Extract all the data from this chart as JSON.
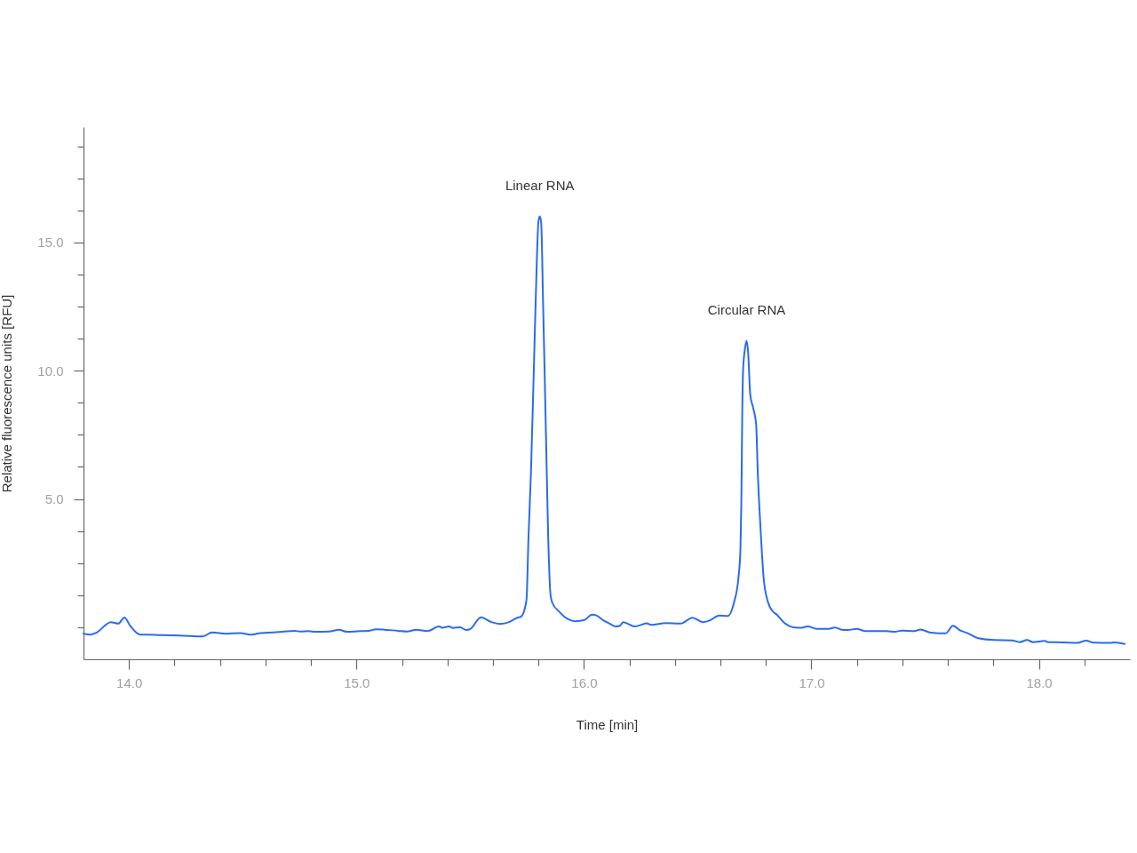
{
  "chart_data": {
    "type": "line",
    "color": "#2a6bef",
    "line_style": "solid",
    "grid": false,
    "xlabel": "Time [min]",
    "ylabel": "Relative fluorescence units [RFU]",
    "xlim": [
      13.8,
      18.4
    ],
    "ylim": [
      -1.25,
      19.5
    ],
    "xticks": [
      {
        "value": 14,
        "label": "14.0"
      },
      {
        "value": 14.2,
        "label": null
      },
      {
        "value": 14.4,
        "label": null
      },
      {
        "value": 14.6,
        "label": null
      },
      {
        "value": 14.8,
        "label": null
      },
      {
        "value": 15,
        "label": "15.0"
      },
      {
        "value": 15.2,
        "label": null
      },
      {
        "value": 15.4,
        "label": null
      },
      {
        "value": 15.6,
        "label": null
      },
      {
        "value": 15.8,
        "label": null
      },
      {
        "value": 16,
        "label": "16.0"
      },
      {
        "value": 16.2,
        "label": null
      },
      {
        "value": 16.4,
        "label": null
      },
      {
        "value": 16.6,
        "label": null
      },
      {
        "value": 16.8,
        "label": null
      },
      {
        "value": 17,
        "label": "17.0"
      },
      {
        "value": 17.2,
        "label": null
      },
      {
        "value": 17.4,
        "label": null
      },
      {
        "value": 17.6,
        "label": null
      },
      {
        "value": 17.8,
        "label": null
      },
      {
        "value": 18,
        "label": "18.0"
      },
      {
        "value": 18.2,
        "label": null
      }
    ],
    "yticks": [
      {
        "value": 0,
        "label": null
      },
      {
        "value": 1.25,
        "label": null
      },
      {
        "value": 2.5,
        "label": null
      },
      {
        "value": 3.75,
        "label": null
      },
      {
        "value": 5,
        "label": "5.0"
      },
      {
        "value": 6.25,
        "label": null
      },
      {
        "value": 7.5,
        "label": null
      },
      {
        "value": 8.75,
        "label": null
      },
      {
        "value": 10,
        "label": "10.0"
      },
      {
        "value": 11.25,
        "label": null
      },
      {
        "value": 12.5,
        "label": null
      },
      {
        "value": 13.75,
        "label": null
      },
      {
        "value": 15,
        "label": "15.0"
      },
      {
        "value": 16.25,
        "label": null
      },
      {
        "value": 17.5,
        "label": null
      },
      {
        "value": 18.75,
        "label": null
      }
    ],
    "annotations": [
      {
        "text": "Linear RNA",
        "x": 15.806,
        "y": 16.02
      },
      {
        "text": "Circular RNA",
        "x": 16.715,
        "y": 11.17
      }
    ],
    "x": [
      13.8,
      13.83,
      13.857,
      13.92,
      13.953,
      13.98,
      14.005,
      14.05,
      14.077,
      14.14,
      14.22,
      14.324,
      14.366,
      14.428,
      14.49,
      14.54,
      14.57,
      14.675,
      14.728,
      14.754,
      14.79,
      14.82,
      14.88,
      14.923,
      14.96,
      15.014,
      15.053,
      15.085,
      15.183,
      15.222,
      15.262,
      15.313,
      15.363,
      15.378,
      15.407,
      15.424,
      15.456,
      15.482,
      15.502,
      15.547,
      15.593,
      15.632,
      15.671,
      15.707,
      15.723,
      15.742,
      15.748,
      15.756,
      15.767,
      15.781,
      15.793,
      15.8,
      15.806,
      15.812,
      15.82,
      15.832,
      15.843,
      15.853,
      15.861,
      15.892,
      15.931,
      15.963,
      16.002,
      16.035,
      16.055,
      16.087,
      16.113,
      16.139,
      16.158,
      16.172,
      16.224,
      16.276,
      16.295,
      16.36,
      16.425,
      16.477,
      16.523,
      16.555,
      16.594,
      16.633,
      16.66,
      16.679,
      16.688,
      16.692,
      16.696,
      16.7,
      16.709,
      16.715,
      16.722,
      16.731,
      16.744,
      16.757,
      16.764,
      16.777,
      16.79,
      16.809,
      16.829,
      16.848,
      16.881,
      16.92,
      16.959,
      16.982,
      17.024,
      17.076,
      17.102,
      17.141,
      17.16,
      17.199,
      17.238,
      17.33,
      17.368,
      17.395,
      17.453,
      17.479,
      17.525,
      17.59,
      17.622,
      17.655,
      17.687,
      17.733,
      17.804,
      17.882,
      17.915,
      17.948,
      17.974,
      18.026,
      18.039,
      18.104,
      18.169,
      18.208,
      18.24,
      18.318,
      18.331,
      18.377
    ],
    "values": [
      -0.25,
      -0.29,
      -0.21,
      0.2,
      0.14,
      0.38,
      0.06,
      -0.29,
      -0.29,
      -0.31,
      -0.32,
      -0.36,
      -0.2,
      -0.25,
      -0.23,
      -0.29,
      -0.24,
      -0.18,
      -0.14,
      -0.17,
      -0.15,
      -0.18,
      -0.17,
      -0.1,
      -0.18,
      -0.15,
      -0.14,
      -0.08,
      -0.14,
      -0.17,
      -0.1,
      -0.15,
      0.03,
      -0.02,
      0.03,
      -0.03,
      0.0,
      -0.11,
      -0.06,
      0.39,
      0.2,
      0.13,
      0.2,
      0.37,
      0.41,
      0.8,
      1.14,
      3.45,
      6.01,
      10.5,
      14.35,
      15.83,
      16.02,
      15.76,
      12.81,
      7.94,
      3.45,
      1.27,
      0.95,
      0.6,
      0.31,
      0.23,
      0.28,
      0.49,
      0.46,
      0.26,
      0.14,
      0.03,
      0.06,
      0.2,
      0.03,
      0.15,
      0.09,
      0.16,
      0.14,
      0.37,
      0.2,
      0.27,
      0.46,
      0.44,
      0.98,
      1.91,
      3.06,
      4.91,
      8.38,
      10.11,
      10.92,
      11.17,
      10.69,
      9.07,
      8.55,
      7.91,
      6.07,
      3.75,
      1.91,
      0.98,
      0.63,
      0.49,
      0.17,
      0.0,
      -0.02,
      0.03,
      -0.06,
      -0.06,
      -0.01,
      -0.11,
      -0.11,
      -0.06,
      -0.15,
      -0.15,
      -0.18,
      -0.13,
      -0.15,
      -0.09,
      -0.21,
      -0.24,
      0.06,
      -0.13,
      -0.23,
      -0.43,
      -0.5,
      -0.51,
      -0.58,
      -0.5,
      -0.58,
      -0.53,
      -0.58,
      -0.59,
      -0.61,
      -0.52,
      -0.6,
      -0.61,
      -0.59,
      -0.65
    ]
  }
}
